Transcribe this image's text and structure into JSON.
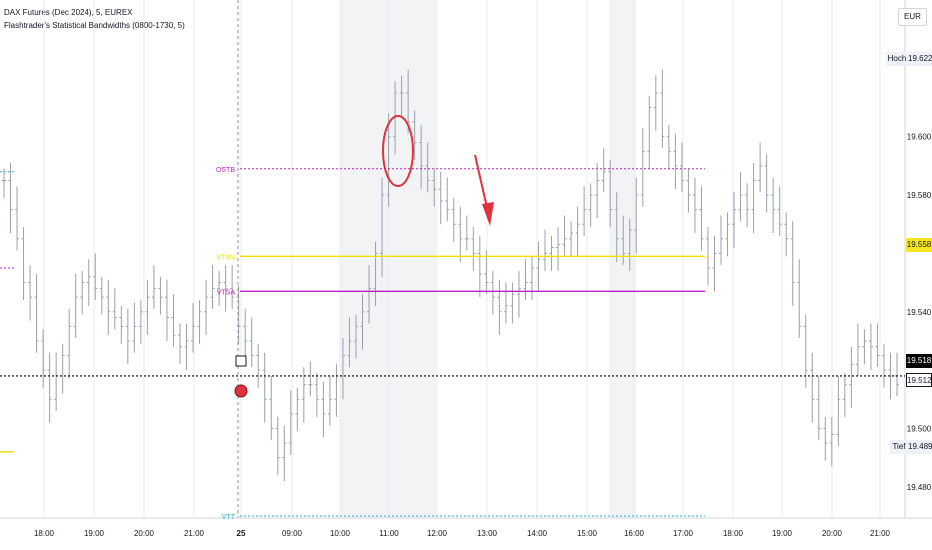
{
  "header": {
    "title": "DAX Futures (Dec 2024), 5, EUREX",
    "indicator": "Flashtrader's Statistical Bandwidths (0800-1730, 5)"
  },
  "axis": {
    "currency": "EUR",
    "hoch_label": "Hoch",
    "hoch_value": "19.622",
    "tief_label": "Tief",
    "tief_value": "19.489",
    "yellow_value": "19.558",
    "black_value": "19.518",
    "last_value": "19.512"
  },
  "colors": {
    "magenta": "#c020c8",
    "yellow": "#f2de00",
    "cyan": "#26b5c8",
    "red": "#e0313c",
    "black": "#000000",
    "candle": "#9aa0a8"
  },
  "icons": {
    "marker_circle": "red-circle-marker",
    "arrow": "red-down-arrow",
    "highlight": "red-ellipse-highlight"
  },
  "chart_data": {
    "type": "line",
    "ylim": [
      19.47,
      19.64
    ],
    "y_ticks": [
      "19.600",
      "19.580",
      "19.540",
      "19.500",
      "19.480"
    ],
    "x_tick_labels": [
      "18:00",
      "19:00",
      "20:00",
      "21:00",
      "25",
      "09:00",
      "10:00",
      "11:00",
      "12:00",
      "13:00",
      "14:00",
      "15:00",
      "16:00",
      "17:00",
      "18:00",
      "19:00",
      "20:00",
      "21:00"
    ],
    "levels": [
      {
        "label": "OSTB",
        "value": 19.589,
        "color": "magenta",
        "style": "dotted"
      },
      {
        "label": "VTSN",
        "value": 19.559,
        "color": "yellow",
        "style": "solid"
      },
      {
        "label": "VTSA",
        "value": 19.547,
        "color": "magenta",
        "style": "solid"
      },
      {
        "label": "VTT",
        "value": 19.47,
        "color": "cyan",
        "style": "dotted"
      }
    ],
    "close_line": 19.518,
    "series": [
      {
        "values": [
          19.585,
          19.575,
          19.565,
          19.55,
          19.545,
          19.53,
          19.52,
          19.51,
          19.518,
          19.525,
          19.535,
          19.545,
          19.55,
          19.552,
          19.548,
          19.545,
          19.54,
          19.538,
          19.535,
          19.53,
          19.535,
          19.54,
          19.545,
          19.548,
          19.545,
          19.538,
          19.532,
          19.528,
          19.53,
          19.535,
          19.54,
          19.545,
          19.548,
          19.55,
          19.548,
          19.545,
          19.535,
          19.53,
          19.525,
          19.52,
          19.51,
          19.5,
          19.49,
          19.495,
          19.505,
          19.51,
          19.515,
          19.515,
          19.51,
          19.505,
          19.51,
          19.518,
          19.525,
          19.53,
          19.535,
          19.54,
          19.548,
          19.56,
          19.58,
          19.6,
          19.615,
          19.615,
          19.605,
          19.598,
          19.59,
          19.585,
          19.582,
          19.578,
          19.575,
          19.57,
          19.565,
          19.565,
          19.56,
          19.553,
          19.55,
          19.545,
          19.54,
          19.542,
          19.546,
          19.548,
          19.55,
          19.555,
          19.558,
          19.56,
          19.562,
          19.563,
          19.565,
          19.567,
          19.57,
          19.575,
          19.58,
          19.585,
          19.588,
          19.575,
          19.565,
          19.56,
          19.568,
          19.58,
          19.595,
          19.61,
          19.615,
          19.6,
          19.595,
          19.59,
          19.585,
          19.58,
          19.575,
          19.565,
          19.555,
          19.56,
          19.565,
          19.57,
          19.575,
          19.58,
          19.575,
          19.585,
          19.59,
          19.58,
          19.575,
          19.57,
          19.565,
          19.55,
          19.535,
          19.52,
          19.51,
          19.5,
          19.495,
          19.498,
          19.51,
          19.515,
          19.522,
          19.528,
          19.53,
          19.528,
          19.525,
          19.52,
          19.518,
          19.515
        ]
      }
    ]
  }
}
